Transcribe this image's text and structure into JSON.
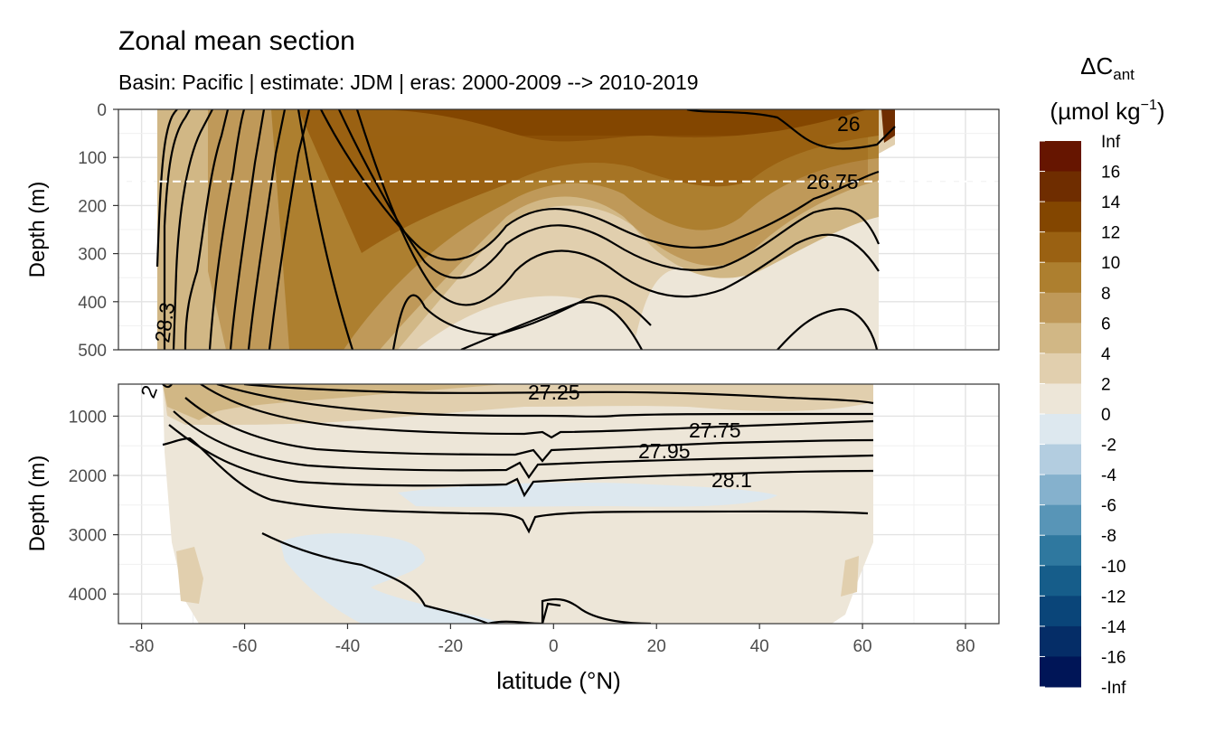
{
  "chart_data": {
    "type": "filled-contour",
    "title": "Zonal mean section",
    "subtitle": "Basin: Pacific | estimate: JDM  | eras: 2000-2009 --> 2010-2019",
    "xlabel": "latitude (°N)",
    "ylabel": "Depth (m)",
    "x_ticks": [
      "-80",
      "-60",
      "-40",
      "-20",
      "0",
      "20",
      "40",
      "60",
      "80"
    ],
    "panels": [
      {
        "name": "upper",
        "ylim": [
          0,
          500
        ],
        "y_ticks": [
          "0",
          "100",
          "200",
          "300",
          "400",
          "500"
        ],
        "reference_depth": 150,
        "isopycnal_labels": [
          "26",
          "26.75",
          "28.3"
        ]
      },
      {
        "name": "lower",
        "ylim": [
          500,
          4500
        ],
        "y_ticks": [
          "1000",
          "2000",
          "3000",
          "4000"
        ],
        "isopycnal_labels": [
          "27.25",
          "27.75",
          "27.95",
          "28.1",
          "2"
        ]
      }
    ],
    "legend": {
      "title_main": "ΔC",
      "title_sub": "ant",
      "unit_prefix": "(µmol kg",
      "unit_sup": "−1",
      "unit_suffix": ")",
      "breaks": [
        "Inf",
        "16",
        "14",
        "12",
        "10",
        "8",
        "6",
        "4",
        "2",
        "0",
        "-2",
        "-4",
        "-6",
        "-8",
        "-10",
        "-12",
        "-14",
        "-16",
        "-Inf"
      ],
      "colors": [
        "#661500",
        "#6f2d00",
        "#834600",
        "#9a6112",
        "#ad7f2f",
        "#bf9959",
        "#d1b785",
        "#e1cfae",
        "#ede6d8",
        "#dde8ef",
        "#b3cde0",
        "#85b1cd",
        "#5895b7",
        "#2f789f",
        "#165d8a",
        "#0a4579",
        "#052d67",
        "#001557"
      ]
    }
  }
}
